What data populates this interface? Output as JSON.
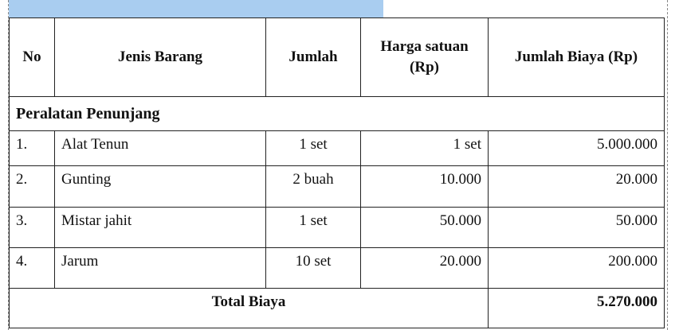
{
  "headers": [
    "No",
    "Jenis Barang",
    "Jumlah",
    "Harga satuan (Rp)",
    "Jumlah Biaya (Rp)"
  ],
  "section": "Peralatan Penunjang",
  "rows": [
    {
      "no": "1.",
      "item": "Alat Tenun",
      "qty": "1 set",
      "price": "1 set",
      "total": "5.000.000"
    },
    {
      "no": "2.",
      "item": "Gunting",
      "qty": "2 buah",
      "price": "10.000",
      "total": "20.000"
    },
    {
      "no": "3.",
      "item": "Mistar jahit",
      "qty": "1 set",
      "price": "50.000",
      "total": "50.000"
    },
    {
      "no": "4.",
      "item": "Jarum",
      "qty": "10 set",
      "price": "20.000",
      "total": "200.000"
    }
  ],
  "total_label": "Total Biaya",
  "total_value": "5.270.000",
  "colors": {
    "selection": "#a9cdf0"
  }
}
